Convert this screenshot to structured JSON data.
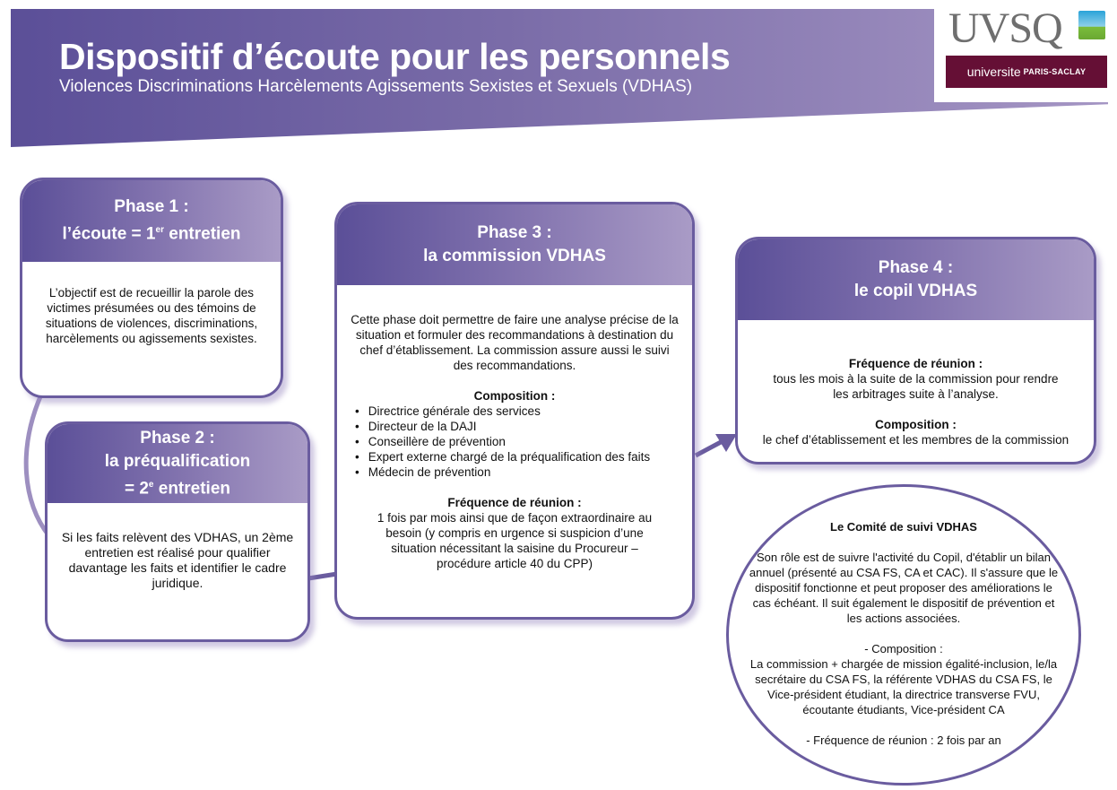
{
  "header": {
    "title": "Dispositif d’écoute pour les personnels",
    "subtitle": "Violences Discriminations Harcèlements Agissements Sexistes et Sexuels (VDHAS)"
  },
  "logos": {
    "uvsq": "UVSQ",
    "saclay_a": "universite",
    "saclay_b": "PARIS-SACLAY"
  },
  "colors": {
    "primary": "#5b4f98",
    "light": "#a99bc6",
    "saclay": "#650f35"
  },
  "phase1": {
    "title": "Phase 1 :",
    "subtitle_a": "l’écoute = 1",
    "subtitle_sup": "er",
    "subtitle_b": " entretien",
    "text": "L’objectif est de recueillir la parole des victimes présumées ou des témoins de situations de violences, discriminations, harcèlements ou agissements sexistes."
  },
  "phase2": {
    "title": "Phase 2 :",
    "subtitle": "la préqualification",
    "subtitle2_a": "= 2",
    "subtitle2_sup": "e",
    "subtitle2_b": " entretien",
    "text": "Si les faits relèvent des VDHAS, un 2ème entretien est réalisé pour qualifier davantage les faits et identifier le cadre juridique."
  },
  "phase3": {
    "title": "Phase 3 :",
    "subtitle": "la commission VDHAS",
    "text": "Cette phase doit permettre de faire une analyse précise de la situation et formuler des recommandations à destination du chef d’établissement. La commission assure aussi le suivi des recommandations.",
    "composition_label": "Composition :",
    "composition": [
      "Directrice générale des services",
      "Directeur de la DAJI",
      "Conseillère de prévention",
      "Expert externe chargé de la préqualification des faits",
      "Médecin de prévention"
    ],
    "frequency_label": "Fréquence de réunion :",
    "frequency": "1 fois par mois ainsi que de façon extraordinaire au besoin (y compris en urgence si suspicion d’une situation nécessitant la saisine du Procureur – procédure article 40 du CPP)"
  },
  "phase4": {
    "title": "Phase 4 :",
    "subtitle": "le copil VDHAS",
    "frequency_label": "Fréquence de réunion :",
    "frequency": "tous les mois à la suite de la commission pour rendre les arbitrages suite à l’analyse.",
    "composition_label": "Composition :",
    "composition": "le chef d’établissement et les membres de la commission"
  },
  "comite": {
    "title": "Le Comité de suivi VDHAS",
    "role": "Son rôle est de suivre l'activité du Copil, d'établir un bilan annuel (présenté au CSA FS, CA et CAC). Il s'assure que le dispositif fonctionne et peut proposer des améliorations le cas échéant. Il suit également le dispositif de prévention et les actions associées.",
    "composition_label": "- Composition :",
    "composition": "La commission + chargée de mission égalité-inclusion, le/la secrétaire du CSA FS, la référente VDHAS du CSA FS, le Vice-président étudiant, la directrice transverse FVU, écoutante étudiants, Vice-président CA",
    "frequency": "- Fréquence de réunion : 2 fois par an"
  }
}
